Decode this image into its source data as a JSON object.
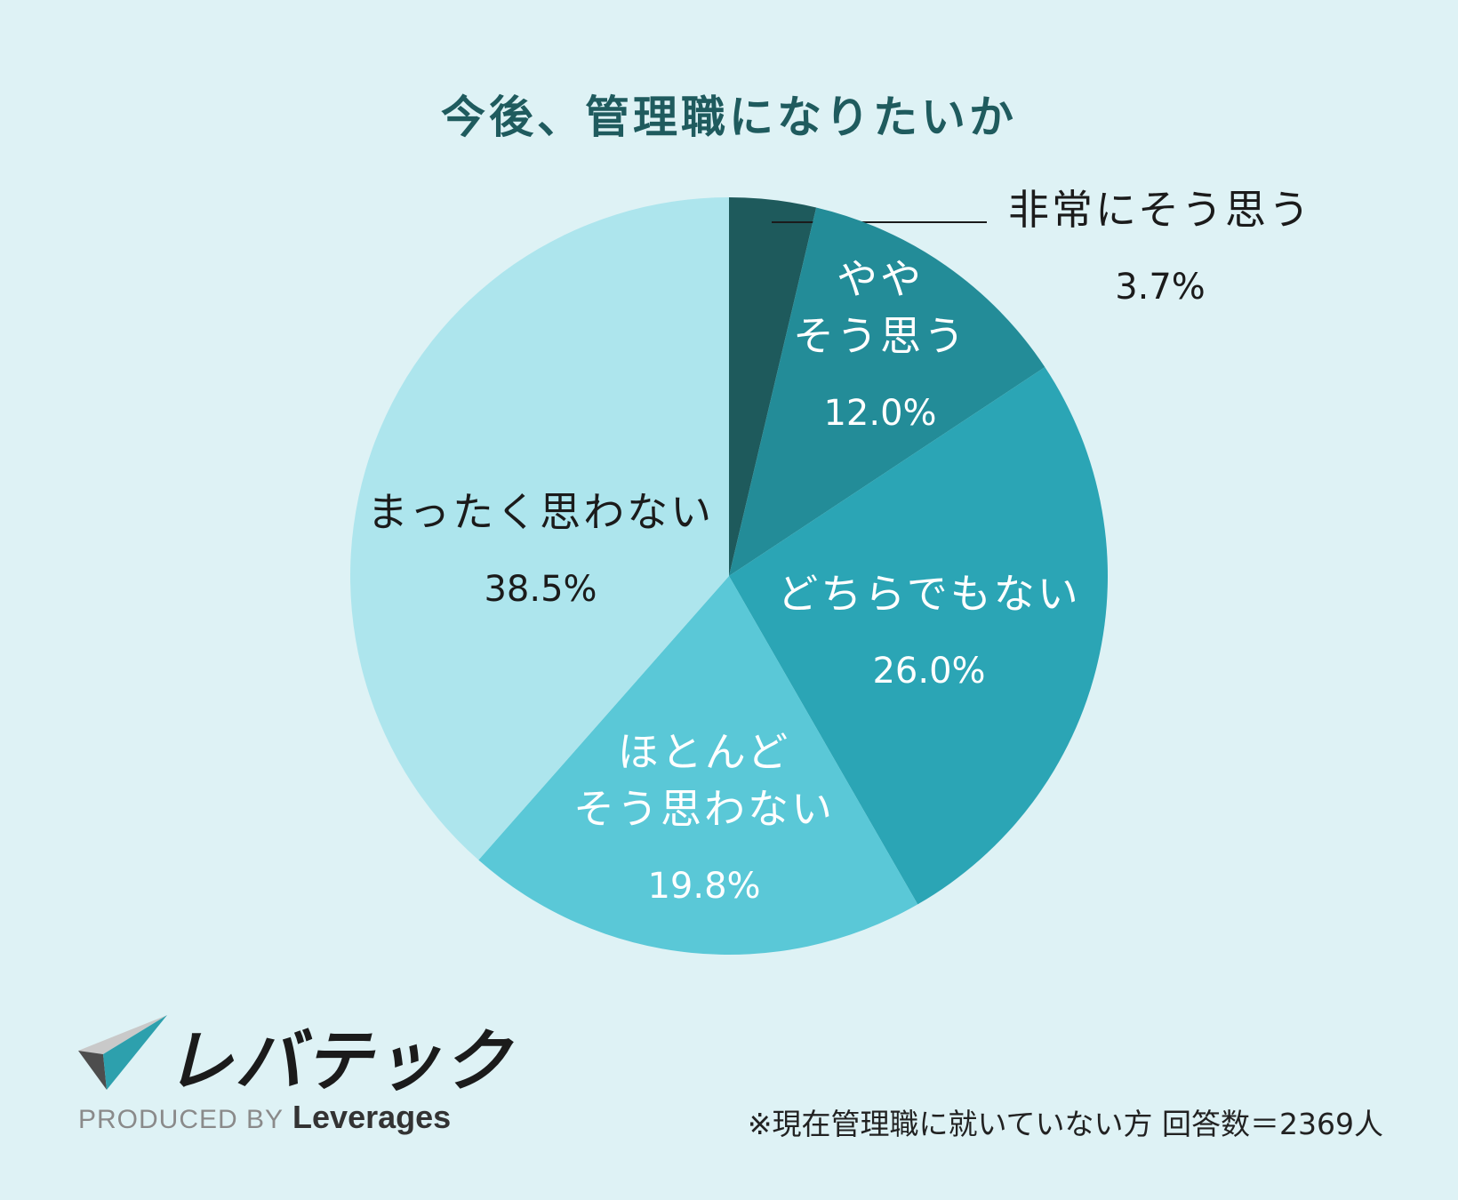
{
  "chart_data": {
    "type": "pie",
    "title": "今後、管理職になりたいか",
    "slices": [
      {
        "label": "非常にそう思う",
        "label_lines": [
          "非常にそう思う"
        ],
        "value": 3.7,
        "value_label": "3.7%",
        "color": "#1e5a5c",
        "text_color": "#1b1b1b"
      },
      {
        "label": "ややそう思う",
        "label_lines": [
          "やや",
          "そう思う"
        ],
        "value": 12.0,
        "value_label": "12.0%",
        "color": "#238c98",
        "text_color": "#ffffff"
      },
      {
        "label": "どちらでもない",
        "label_lines": [
          "どちらでもない"
        ],
        "value": 26.0,
        "value_label": "26.0%",
        "color": "#2ba5b5",
        "text_color": "#ffffff"
      },
      {
        "label": "ほとんどそう思わない",
        "label_lines": [
          "ほとんど",
          "そう思わない"
        ],
        "value": 19.8,
        "value_label": "19.8%",
        "color": "#5ac8d7",
        "text_color": "#ffffff"
      },
      {
        "label": "まったく思わない",
        "label_lines": [
          "まったく思わない"
        ],
        "value": 38.5,
        "value_label": "38.5%",
        "color": "#ade5ed",
        "text_color": "#1b1b1b"
      }
    ]
  },
  "footnote": "※現在管理職に就いていない方 回答数＝2369人",
  "logo": {
    "name_jp": "レバテック",
    "produced_by": "PRODUCED BY",
    "brand": "Leverages"
  }
}
